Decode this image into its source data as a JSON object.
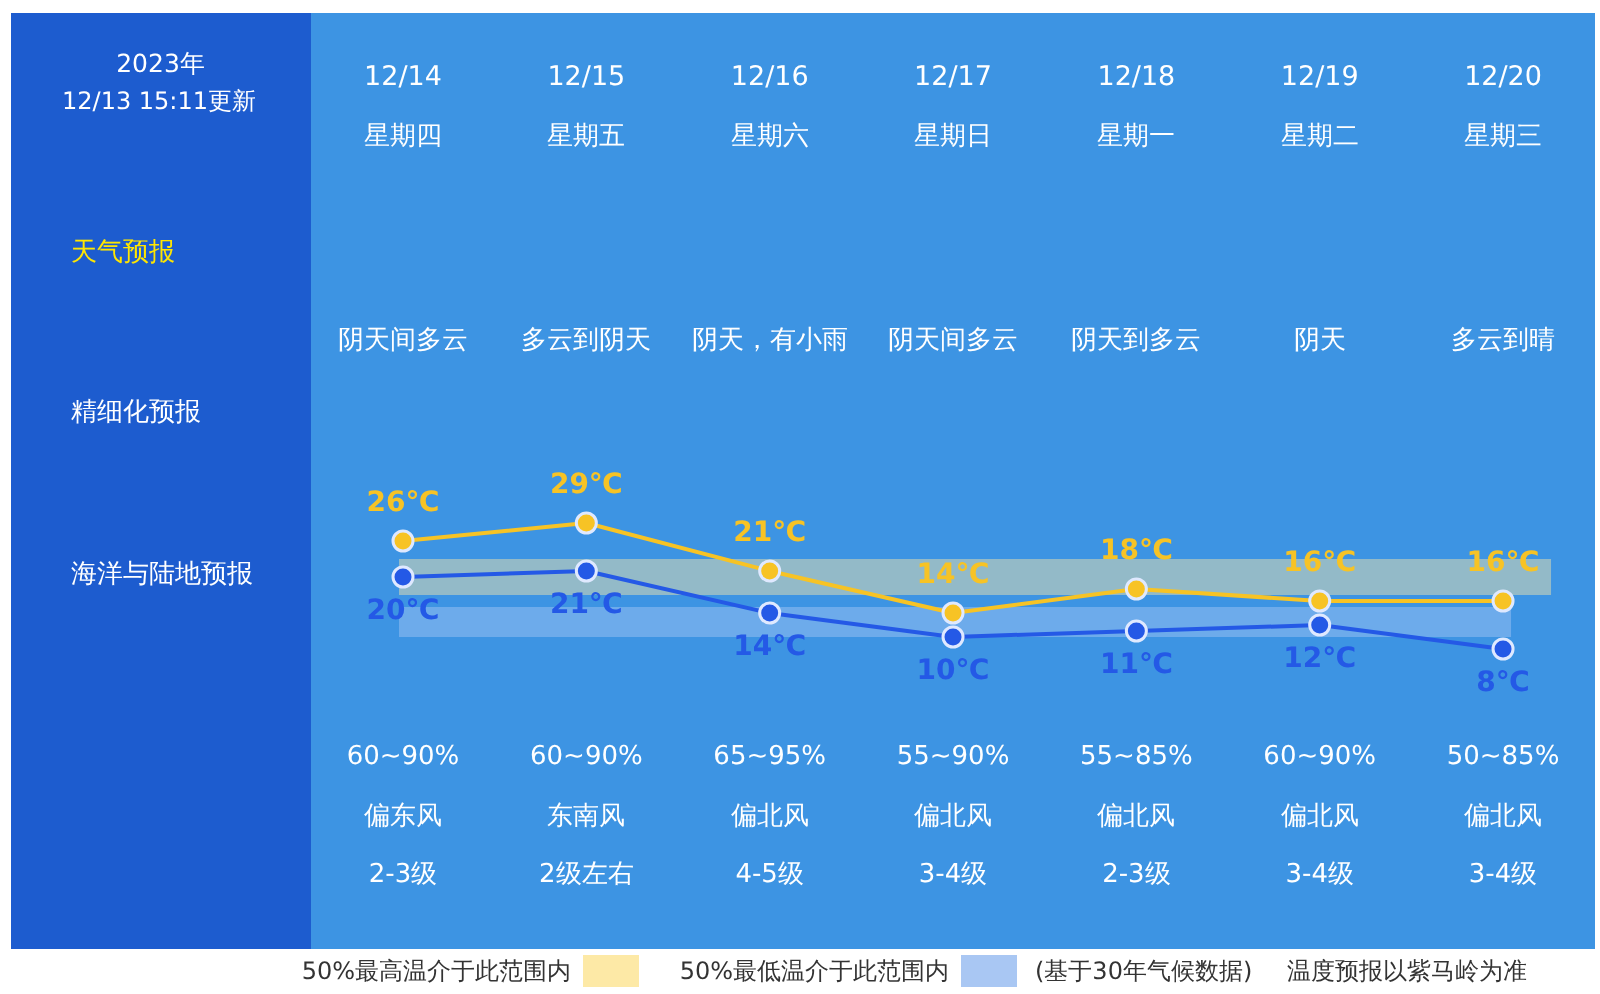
{
  "chart_data": {
    "type": "line",
    "categories": [
      "12/14",
      "12/15",
      "12/16",
      "12/17",
      "12/18",
      "12/19",
      "12/20"
    ],
    "series": [
      {
        "color": "#f7c325",
        "values": [
          26,
          29,
          21,
          14,
          18,
          16,
          16
        ],
        "value_labels": [
          "26℃",
          "29℃",
          "21℃",
          "14℃",
          "18℃",
          "16℃",
          "16℃"
        ]
      },
      {
        "color": "#2459e6",
        "values": [
          20,
          21,
          14,
          10,
          11,
          12,
          8
        ],
        "value_labels": [
          "20℃",
          "21℃",
          "14℃",
          "10℃",
          "11℃",
          "12℃",
          "8℃"
        ]
      }
    ],
    "bands": [
      {
        "axis": "y",
        "from": 17,
        "to": 23,
        "label": "50%最高温介于此范围内",
        "color": "#fde9a6"
      },
      {
        "axis": "y",
        "from": 10,
        "to": 15,
        "label": "50%最低温介于此范围内",
        "color": "#a9c7f3"
      }
    ],
    "marker": "circle",
    "line_style": "solid",
    "legend": "bottom",
    "tick_labels": "x",
    "annotations": [
      "2023年",
      "12/13 15:11更新",
      "天气预报",
      "精细化预报",
      "海洋与陆地预报",
      "(基于30年气候数据)",
      "温度预报以紫马岭为准",
      "星期四",
      "阴天间多云",
      "60~90%",
      "偏东风",
      "2-3级",
      "星期五",
      "多云到阴天",
      "60~90%",
      "东南风",
      "2级左右",
      "星期六",
      "阴天，有小雨",
      "65~95%",
      "偏北风",
      "4-5级",
      "星期日",
      "阴天间多云",
      "55~90%",
      "偏北风",
      "3-4级",
      "星期一",
      "阴天到多云",
      "55~85%",
      "偏北风",
      "2-3级",
      "星期二",
      "阴天",
      "60~90%",
      "偏北风",
      "3-4级",
      "星期三",
      "多云到晴",
      "50~85%",
      "偏北风",
      "3-4级"
    ]
  }
}
